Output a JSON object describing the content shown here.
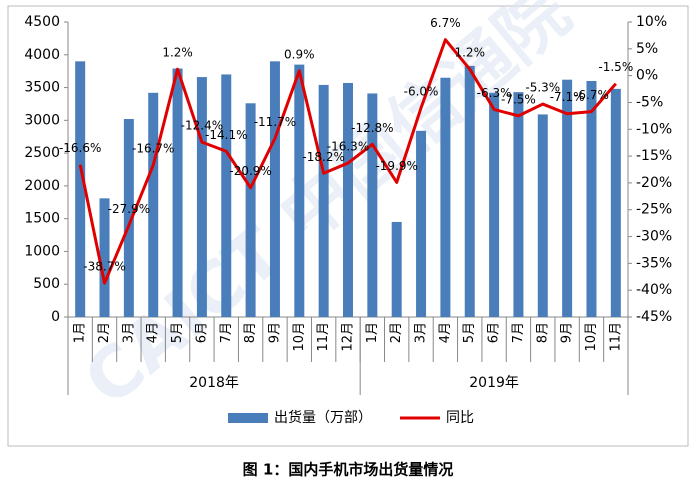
{
  "chart_data": {
    "type": "bar_line",
    "caption": "图 1：国内手机市场出货量情况",
    "watermark": "CAICT 中国信通院",
    "groups": [
      {
        "name": "2018年",
        "categories": [
          "1月",
          "2月",
          "3月",
          "4月",
          "5月",
          "6月",
          "7月",
          "8月",
          "9月",
          "10月",
          "11月",
          "12月"
        ]
      },
      {
        "name": "2019年",
        "categories": [
          "1月",
          "2月",
          "3月",
          "4月",
          "5月",
          "6月",
          "7月",
          "8月",
          "9月",
          "10月",
          "11月"
        ]
      }
    ],
    "series": [
      {
        "name": "出货量（万部）",
        "type": "bar",
        "color": "#4a7ebb",
        "values": [
          3900,
          1810,
          3020,
          3420,
          3790,
          3660,
          3700,
          3260,
          3900,
          3850,
          3540,
          3570,
          3410,
          1450,
          2840,
          3650,
          3830,
          3420,
          3430,
          3090,
          3620,
          3600,
          3480
        ]
      },
      {
        "name": "同比",
        "type": "line",
        "axis": "y2",
        "color": "#e00000",
        "values": [
          -16.6,
          -38.7,
          -27.9,
          -16.7,
          1.2,
          -12.4,
          -14.1,
          -20.9,
          -11.7,
          0.9,
          -18.2,
          -16.3,
          -12.8,
          -19.9,
          -6.0,
          6.7,
          1.2,
          -6.3,
          -7.5,
          -5.3,
          -7.1,
          -6.7,
          -1.5
        ],
        "value_labels": [
          "-16.6%",
          "-38.7%",
          "-27.9%",
          "-16.7%",
          "1.2%",
          "-12.4%",
          "-14.1%",
          "-20.9%",
          "-11.7%",
          "0.9%",
          "-18.2%",
          "-16.3%",
          "-12.8%",
          "-19.9%",
          "-6.0%",
          "6.7%",
          "1.2%",
          "-6.3%",
          "-7.5%",
          "-5.3%",
          "-7.1%",
          "-6.7%",
          "-1.5%"
        ]
      }
    ],
    "ylim": [
      0,
      4500
    ],
    "yticks": [
      0,
      500,
      1000,
      1500,
      2000,
      2500,
      3000,
      3500,
      4000,
      4500
    ],
    "y2lim": [
      -45,
      10
    ],
    "y2ticks": [
      {
        "value": -45,
        "label": "-45%"
      },
      {
        "value": -40,
        "label": "-40%"
      },
      {
        "value": -35,
        "label": "-35%"
      },
      {
        "value": -30,
        "label": "-30%"
      },
      {
        "value": -25,
        "label": "-25%"
      },
      {
        "value": -20,
        "label": "-20%"
      },
      {
        "value": -15,
        "label": "-15%"
      },
      {
        "value": -10,
        "label": "-10%"
      },
      {
        "value": -5,
        "label": "-5%"
      },
      {
        "value": 0,
        "label": "0%"
      },
      {
        "value": 5,
        "label": "5%"
      },
      {
        "value": 10,
        "label": "10%"
      }
    ],
    "grid": false
  }
}
